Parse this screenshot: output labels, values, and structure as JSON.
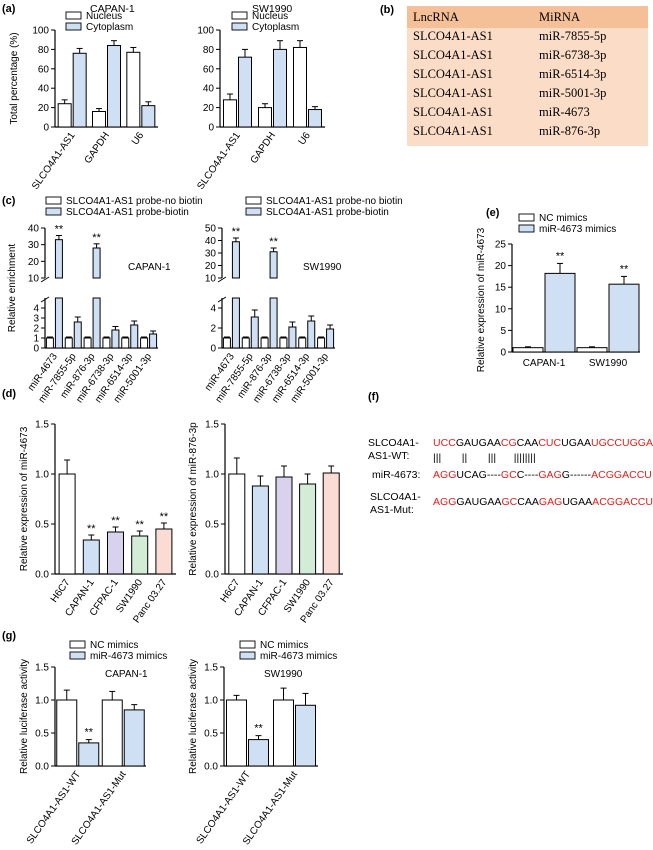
{
  "colors": {
    "white_fill": "#ffffff",
    "blue_fill": "#cfe0f5",
    "purple_fill": "#d8d2ee",
    "pink_fill": "#fbdcd5",
    "red_text": "#e0201c",
    "table_bg": "#fbdcc6",
    "table_header": "#f5bf98"
  },
  "chart_data": [
    {
      "id": "a1",
      "panel": "(a)",
      "type": "bar",
      "title": "CAPAN-1",
      "ylabel": "Total percentage (%)",
      "ylim": [
        0,
        100
      ],
      "yticks": [
        0,
        20,
        40,
        60,
        80,
        100
      ],
      "categories": [
        "SLCO4A1-AS1",
        "GAPDH",
        "U6"
      ],
      "series": [
        {
          "name": "Nucleus",
          "values": [
            24,
            16,
            77
          ],
          "errors": [
            4,
            3,
            5
          ]
        },
        {
          "name": "Cytoplasm",
          "values": [
            76,
            84,
            22
          ],
          "errors": [
            5,
            5,
            4
          ]
        }
      ]
    },
    {
      "id": "a2",
      "panel": "",
      "type": "bar",
      "title": "SW1990",
      "ylabel": "",
      "ylim": [
        0,
        100
      ],
      "yticks": [
        0,
        20,
        40,
        60,
        80,
        100
      ],
      "categories": [
        "SLCO4A1-AS1",
        "GAPDH",
        "U6"
      ],
      "series": [
        {
          "name": "Nucleus",
          "values": [
            28,
            20,
            82
          ],
          "errors": [
            6,
            4,
            7
          ]
        },
        {
          "name": "Cytoplasm",
          "values": [
            72,
            80,
            18
          ],
          "errors": [
            8,
            9,
            3
          ]
        }
      ]
    },
    {
      "id": "c1",
      "panel": "(c)",
      "type": "bar",
      "title": "CAPAN-1",
      "ylabel": "Relative enrichment",
      "ylim": [
        0,
        40
      ],
      "broken_axis": [
        5,
        10
      ],
      "yticks_lower": [
        0,
        1,
        2,
        3,
        4
      ],
      "yticks_upper": [
        10,
        20,
        30,
        40
      ],
      "categories": [
        "miR-4673",
        "miR-7855-5p",
        "miR-876-3p",
        "miR-6738-3p",
        "miR-6514-3p",
        "miR-5001-3p"
      ],
      "series": [
        {
          "name": "SLCO4A1-AS1 probe-no biotin",
          "values": [
            1,
            1,
            1,
            1,
            1,
            1
          ],
          "errors": [
            0.1,
            0.1,
            0.1,
            0.1,
            0.1,
            0.1
          ]
        },
        {
          "name": "SLCO4A1-AS1 probe-biotin",
          "values": [
            33,
            2.6,
            28,
            1.8,
            2.3,
            1.4
          ],
          "errors": [
            2.5,
            0.5,
            2.5,
            0.35,
            0.4,
            0.3
          ]
        }
      ],
      "annotations": [
        {
          "category": "miR-4673",
          "text": "**"
        },
        {
          "category": "miR-876-3p",
          "text": "**"
        }
      ]
    },
    {
      "id": "c2",
      "panel": "",
      "type": "bar",
      "title": "SW1990",
      "ylabel": "",
      "ylim": [
        0,
        50
      ],
      "broken_axis": [
        5,
        10
      ],
      "yticks_lower": [
        0,
        2,
        4
      ],
      "yticks_upper": [
        10,
        20,
        30,
        40,
        50
      ],
      "categories": [
        "miR-4673",
        "miR-7855-5p",
        "miR-876-3p",
        "miR-6738-3p",
        "miR-6514-3p",
        "miR-5001-3p"
      ],
      "series": [
        {
          "name": "SLCO4A1-AS1 probe-no biotin",
          "values": [
            1,
            1,
            1,
            1,
            1,
            1
          ],
          "errors": [
            0.1,
            0.1,
            0.1,
            0.1,
            0.1,
            0.1
          ]
        },
        {
          "name": "SLCO4A1-AS1 probe-biotin",
          "values": [
            39,
            3.1,
            31,
            2.1,
            2.7,
            1.9
          ],
          "errors": [
            3,
            0.7,
            3,
            0.5,
            0.5,
            0.4
          ]
        }
      ],
      "annotations": [
        {
          "category": "miR-4673",
          "text": "**"
        },
        {
          "category": "miR-876-3p",
          "text": "**"
        }
      ]
    },
    {
      "id": "e",
      "panel": "(e)",
      "type": "bar",
      "title": "",
      "ylabel": "Relative expression of miR-4673",
      "ylim": [
        0,
        25
      ],
      "yticks": [
        0,
        5,
        10,
        15,
        20,
        25
      ],
      "categories": [
        "CAPAN-1",
        "SW1990"
      ],
      "series": [
        {
          "name": "NC mimics",
          "values": [
            1,
            1
          ],
          "errors": [
            0.2,
            0.2
          ]
        },
        {
          "name": "miR-4673 mimics",
          "values": [
            18.2,
            15.7
          ],
          "errors": [
            2.3,
            1.8
          ]
        }
      ],
      "annotations": [
        {
          "category": "CAPAN-1",
          "text": "**"
        },
        {
          "category": "SW1990",
          "text": "**"
        }
      ]
    },
    {
      "id": "d1",
      "panel": "(d)",
      "type": "bar",
      "title": "",
      "ylabel": "Relative expression of miR-4673",
      "ylim": [
        0,
        1.5
      ],
      "yticks": [
        0.0,
        0.5,
        1.0,
        1.5
      ],
      "categories": [
        "H6C7",
        "CAPAN-1",
        "CFPAC-1",
        "SW1990",
        "Panc 03.27"
      ],
      "values": [
        1.0,
        0.34,
        0.42,
        0.38,
        0.45
      ],
      "errors": [
        0.14,
        0.05,
        0.05,
        0.05,
        0.06
      ],
      "fills": [
        "#ffffff",
        "#cfe0f5",
        "#d8d2ee",
        "#d3ecd6",
        "#fbdcd5"
      ],
      "annotations": [
        {
          "category": "CAPAN-1",
          "text": "**"
        },
        {
          "category": "CFPAC-1",
          "text": "**"
        },
        {
          "category": "SW1990",
          "text": "**"
        },
        {
          "category": "Panc 03.27",
          "text": "**"
        }
      ]
    },
    {
      "id": "d2",
      "panel": "",
      "type": "bar",
      "title": "",
      "ylabel": "Relative expression of miR-876-3p",
      "ylim": [
        0,
        1.5
      ],
      "yticks": [
        0.0,
        0.5,
        1.0,
        1.5
      ],
      "categories": [
        "H6C7",
        "CAPAN-1",
        "CFPAC-1",
        "SW1990",
        "Panc 03.27"
      ],
      "values": [
        1.0,
        0.88,
        0.97,
        0.9,
        1.01
      ],
      "errors": [
        0.16,
        0.1,
        0.11,
        0.1,
        0.07
      ],
      "fills": [
        "#ffffff",
        "#cfe0f5",
        "#d8d2ee",
        "#d3ecd6",
        "#fbdcd5"
      ]
    },
    {
      "id": "g1",
      "panel": "(g)",
      "type": "bar",
      "title": "CAPAN-1",
      "ylabel": "Relative luciferase activity",
      "ylim": [
        0,
        1.5
      ],
      "yticks": [
        0.0,
        0.5,
        1.0,
        1.5
      ],
      "categories": [
        "SLCO4A1-AS1-WT",
        "SLCO4A1-AS1-Mut"
      ],
      "series": [
        {
          "name": "NC mimics",
          "values": [
            1.0,
            1.0
          ],
          "errors": [
            0.15,
            0.13
          ]
        },
        {
          "name": "miR-4673 mimics",
          "values": [
            0.35,
            0.85
          ],
          "errors": [
            0.05,
            0.08
          ]
        }
      ],
      "annotations": [
        {
          "category": "SLCO4A1-AS1-WT",
          "text": "**"
        }
      ]
    },
    {
      "id": "g2",
      "panel": "",
      "type": "bar",
      "title": "SW1990",
      "ylabel": "Relative luciferase activity",
      "ylim": [
        0,
        1.5
      ],
      "yticks": [
        0.0,
        0.5,
        1.0,
        1.5
      ],
      "categories": [
        "SLCO4A1-AS1-WT",
        "SLCO4A1-AS1-Mut"
      ],
      "series": [
        {
          "name": "NC mimics",
          "values": [
            1.0,
            1.0
          ],
          "errors": [
            0.07,
            0.18
          ]
        },
        {
          "name": "miR-4673 mimics",
          "values": [
            0.4,
            0.92
          ],
          "errors": [
            0.06,
            0.18
          ]
        }
      ],
      "annotations": [
        {
          "category": "SLCO4A1-AS1-WT",
          "text": "**"
        }
      ]
    }
  ],
  "panel_b": {
    "label": "(b)",
    "headers": [
      "LncRNA",
      "MiRNA"
    ],
    "rows": [
      [
        "SLCO4A1-AS1",
        "miR-7855-5p"
      ],
      [
        "SLCO4A1-AS1",
        "miR-6738-3p"
      ],
      [
        "SLCO4A1-AS1",
        "miR-6514-3p"
      ],
      [
        "SLCO4A1-AS1",
        "miR-5001-3p"
      ],
      [
        "SLCO4A1-AS1",
        "miR-4673"
      ],
      [
        "SLCO4A1-AS1",
        "miR-876-3p"
      ]
    ]
  },
  "panel_f": {
    "label": "(f)",
    "wt_label_1": "SLCO4A1-",
    "wt_label_2": "AS1-WT:",
    "mir_label": "miR-4673:",
    "mut_label_1": "SLCO4A1-",
    "mut_label_2": "AS1-Mut:",
    "wt_seq": [
      [
        "UCC",
        "r"
      ],
      [
        "GAUGAA",
        "k"
      ],
      [
        "CG",
        "r"
      ],
      [
        "CAA",
        "k"
      ],
      [
        "CUC",
        "r"
      ],
      [
        "UGAA",
        "k"
      ],
      [
        "UGCCUGGA",
        "r"
      ]
    ],
    "pairing": "|||       ||       |||      ||||||||",
    "mir_seq": [
      [
        "AGG",
        "r"
      ],
      [
        "UCAG----",
        "k"
      ],
      [
        "GC",
        "r"
      ],
      [
        "C----",
        "k"
      ],
      [
        "GAG",
        "r"
      ],
      [
        "G------",
        "k"
      ],
      [
        "ACGGACCU",
        "r"
      ]
    ],
    "mut_seq": [
      [
        "AGG",
        "r"
      ],
      [
        "GAUGAA",
        "k"
      ],
      [
        "GC",
        "r"
      ],
      [
        "CAA",
        "k"
      ],
      [
        "GAG",
        "r"
      ],
      [
        "UGAA",
        "k"
      ],
      [
        "ACGGACCU",
        "r"
      ]
    ]
  }
}
